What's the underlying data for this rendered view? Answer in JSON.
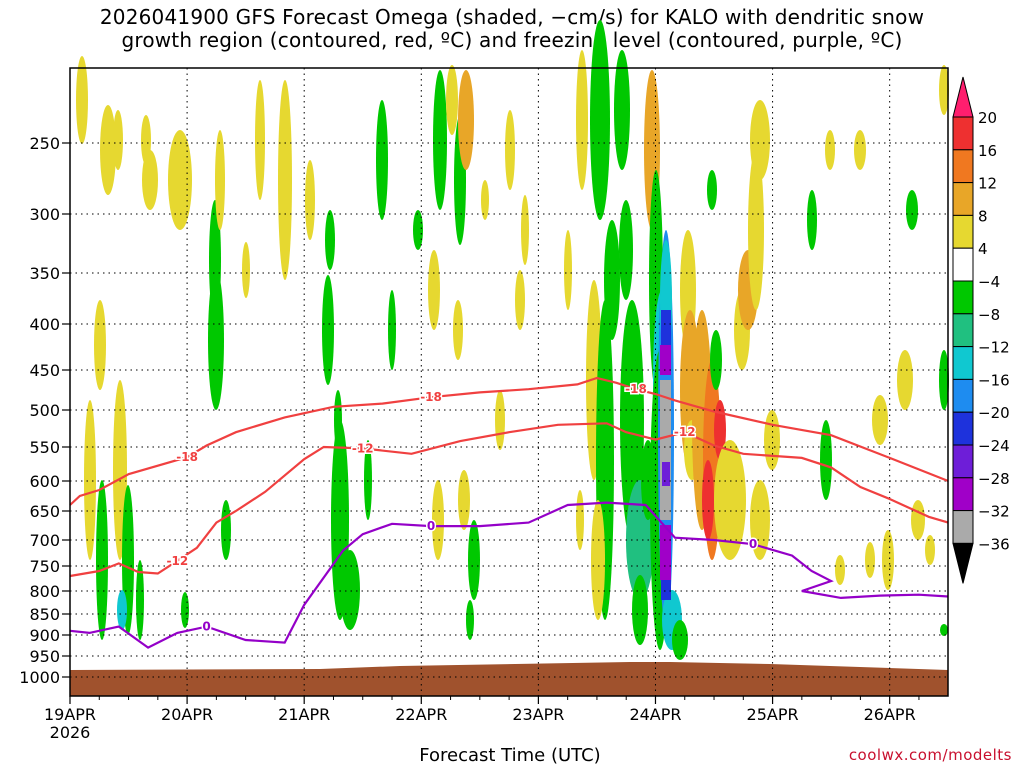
{
  "chart_data": {
    "type": "heatmap",
    "title_lines": [
      "2026041900 GFS Forecast Omega (shaded, −cm/s) for KALO with dendritic snow",
      "growth region (contoured, red, ºC) and freezing level (contoured, purple, ºC)"
    ],
    "xlabel": "Forecast Time (UTC)",
    "credit": "coolwx.com/modelts",
    "x_ticks": [
      {
        "label": "19APR",
        "sub": "2026",
        "t": 0
      },
      {
        "label": "20APR",
        "t": 24
      },
      {
        "label": "21APR",
        "t": 48
      },
      {
        "label": "22APR",
        "t": 72
      },
      {
        "label": "23APR",
        "t": 96
      },
      {
        "label": "24APR",
        "t": 120
      },
      {
        "label": "25APR",
        "t": 144
      },
      {
        "label": "26APR",
        "t": 168
      }
    ],
    "x_range_hours": [
      0,
      180
    ],
    "y_ticks": [
      "250",
      "300",
      "350",
      "400",
      "450",
      "500",
      "550",
      "600",
      "650",
      "700",
      "750",
      "800",
      "850",
      "900",
      "950",
      "1000"
    ],
    "y_axis": "pressure (hPa), inverted",
    "grid": "dotted",
    "colorbar": {
      "labels": [
        "20",
        "16",
        "12",
        "8",
        "4",
        "−4",
        "−8",
        "−12",
        "−16",
        "−20",
        "−24",
        "−28",
        "−32",
        "−36"
      ],
      "colors": [
        "#ff1e6e",
        "#ee3030",
        "#f07820",
        "#e8a628",
        "#e6d830",
        "#ffffff",
        "#00c800",
        "#20c080",
        "#10c8d0",
        "#1e8cf0",
        "#1e32dc",
        "#6e1ed8",
        "#a000c8",
        "#aaaaaa",
        "#000000"
      ]
    },
    "contours": [
      {
        "name": "-18",
        "color": "#f04040",
        "points": [
          [
            0,
            640
          ],
          [
            2,
            625
          ],
          [
            6,
            615
          ],
          [
            12,
            590
          ],
          [
            24,
            565
          ],
          [
            28,
            548
          ],
          [
            34,
            530
          ],
          [
            44,
            510
          ],
          [
            54,
            496
          ],
          [
            64,
            492
          ],
          [
            74,
            484
          ],
          [
            84,
            478
          ],
          [
            94,
            474
          ],
          [
            104,
            468
          ],
          [
            108,
            460
          ],
          [
            112,
            466
          ],
          [
            116,
            474
          ],
          [
            120,
            480
          ],
          [
            124,
            488
          ],
          [
            132,
            502
          ],
          [
            144,
            520
          ],
          [
            156,
            534
          ],
          [
            168,
            566
          ],
          [
            180,
            600
          ]
        ]
      },
      {
        "name": "-12",
        "color": "#f04040",
        "points": [
          [
            0,
            770
          ],
          [
            6,
            760
          ],
          [
            10,
            745
          ],
          [
            14,
            762
          ],
          [
            18,
            765
          ],
          [
            22,
            740
          ],
          [
            26,
            715
          ],
          [
            30,
            670
          ],
          [
            34,
            650
          ],
          [
            40,
            618
          ],
          [
            48,
            568
          ],
          [
            52,
            550
          ],
          [
            60,
            552
          ],
          [
            70,
            560
          ],
          [
            80,
            542
          ],
          [
            90,
            530
          ],
          [
            100,
            520
          ],
          [
            110,
            518
          ],
          [
            114,
            530
          ],
          [
            120,
            540
          ],
          [
            126,
            530
          ],
          [
            132,
            548
          ],
          [
            138,
            560
          ],
          [
            150,
            566
          ],
          [
            156,
            580
          ],
          [
            162,
            610
          ],
          [
            168,
            630
          ],
          [
            176,
            660
          ],
          [
            180,
            670
          ]
        ]
      },
      {
        "name": "0",
        "color": "#9400c8",
        "points": [
          [
            0,
            890
          ],
          [
            4,
            895
          ],
          [
            10,
            880
          ],
          [
            16,
            930
          ],
          [
            22,
            895
          ],
          [
            28,
            880
          ],
          [
            36,
            912
          ],
          [
            44,
            918
          ],
          [
            48,
            830
          ],
          [
            56,
            720
          ],
          [
            60,
            690
          ],
          [
            66,
            672
          ],
          [
            74,
            676
          ],
          [
            84,
            676
          ],
          [
            94,
            670
          ],
          [
            102,
            640
          ],
          [
            110,
            636
          ],
          [
            118,
            640
          ],
          [
            124,
            696
          ],
          [
            132,
            700
          ],
          [
            140,
            708
          ],
          [
            148,
            730
          ],
          [
            152,
            760
          ],
          [
            156,
            780
          ],
          [
            150,
            800
          ],
          [
            158,
            815
          ],
          [
            166,
            810
          ],
          [
            174,
            808
          ],
          [
            180,
            812
          ]
        ]
      }
    ]
  }
}
